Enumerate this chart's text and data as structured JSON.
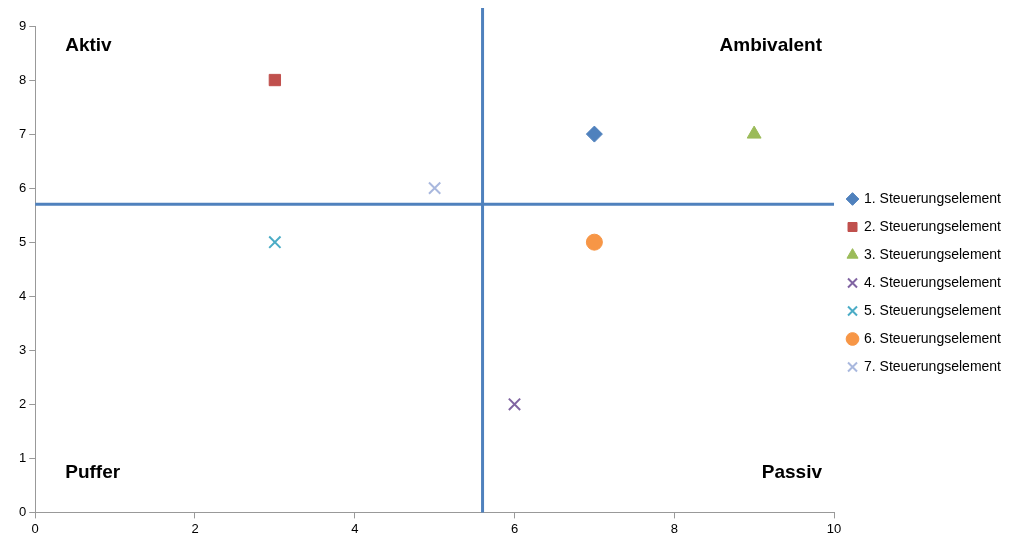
{
  "chart_data": {
    "type": "scatter",
    "xlim": [
      0,
      10
    ],
    "ylim": [
      0,
      9
    ],
    "xticks": [
      0,
      2,
      4,
      6,
      8,
      10
    ],
    "yticks": [
      0,
      1,
      2,
      3,
      4,
      5,
      6,
      7,
      8,
      9
    ],
    "grid": false,
    "legend": "right",
    "series": [
      {
        "name": "1. Steuerungselement",
        "color": "#4f81bd",
        "marker": "diamond",
        "x": [
          7
        ],
        "values": [
          7
        ]
      },
      {
        "name": "2. Steuerungselement",
        "color": "#c0504d",
        "marker": "square",
        "x": [
          3
        ],
        "values": [
          8
        ]
      },
      {
        "name": "3. Steuerungselement",
        "color": "#9bbb59",
        "marker": "triangle",
        "x": [
          9
        ],
        "values": [
          7
        ]
      },
      {
        "name": "4. Steuerungselement",
        "color": "#8064a2",
        "marker": "cross",
        "x": [
          6
        ],
        "values": [
          2
        ]
      },
      {
        "name": "5. Steuerungselement",
        "color": "#4bacc6",
        "marker": "cross",
        "x": [
          3
        ],
        "values": [
          5
        ]
      },
      {
        "name": "6. Steuerungselement",
        "color": "#f79646",
        "marker": "circle",
        "x": [
          7
        ],
        "values": [
          5
        ]
      },
      {
        "name": "7. Steuerungselement",
        "color": "#a9b8de",
        "marker": "cross",
        "x": [
          5
        ],
        "values": [
          6
        ]
      }
    ],
    "ref_lines": [
      {
        "axis": "x",
        "value": 5.6,
        "color": "#4f81bd"
      },
      {
        "axis": "y",
        "value": 5.7,
        "color": "#4f81bd"
      }
    ],
    "annotations": [
      "Aktiv",
      "Ambivalent",
      "Puffer",
      "Passiv"
    ]
  }
}
